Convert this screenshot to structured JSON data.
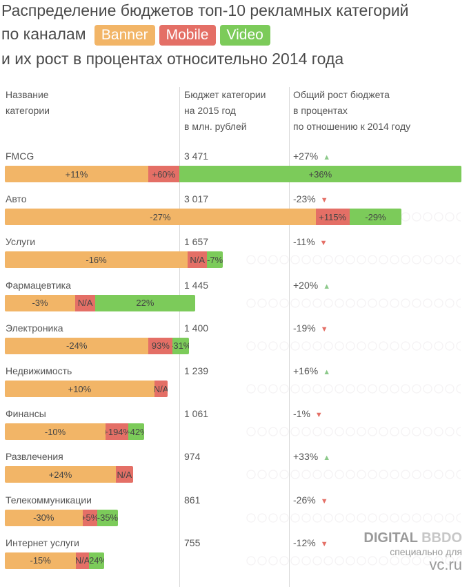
{
  "title": {
    "line1": "Распределение бюджетов топ-10 рекламных категорий",
    "line2": "по каналам",
    "line3": "и их рост в процентах относительно 2014 года"
  },
  "legend": [
    {
      "label": "Banner",
      "color": "#f2b567"
    },
    {
      "label": "Mobile",
      "color": "#e46f66"
    },
    {
      "label": "Video",
      "color": "#7ccb5a"
    }
  ],
  "headers": {
    "name": [
      "Название",
      "категории"
    ],
    "budget": [
      "Бюджет категории",
      "на 2015 год",
      "в млн. рублей"
    ],
    "growth": [
      "Общий рост бюджета",
      "в процентах",
      "по отношению к 2014 году"
    ]
  },
  "colors": {
    "banner": "#f2b567",
    "mobile": "#e46f66",
    "video": "#7ccb5a",
    "up": "#8cc98a",
    "down": "#e46f66"
  },
  "chart_data": {
    "type": "bar",
    "categories": [
      "FMCG",
      "Авто",
      "Услуги",
      "Фармацевтика",
      "Электроника",
      "Недвижимость",
      "Финансы",
      "Развлечения",
      "Телекоммуникации",
      "Интернет услуги"
    ],
    "rows": [
      {
        "name": "FMCG",
        "budget_label": "3 471",
        "budget": 3471,
        "growth_label": "+27%",
        "direction": "up",
        "segments": [
          {
            "channel": "banner",
            "value": 1090,
            "label": "+11%"
          },
          {
            "channel": "mobile",
            "value": 235,
            "label": "+60%"
          },
          {
            "channel": "video",
            "value": 2146,
            "label": "+36%"
          }
        ]
      },
      {
        "name": "Авто",
        "budget_label": "3 017",
        "budget": 3017,
        "growth_label": "-23%",
        "direction": "down",
        "segments": [
          {
            "channel": "banner",
            "value": 2364,
            "label": "-27%"
          },
          {
            "channel": "mobile",
            "value": 255,
            "label": "+115%"
          },
          {
            "channel": "video",
            "value": 398,
            "label": "-29%"
          }
        ]
      },
      {
        "name": "Услуги",
        "budget_label": "1 657",
        "budget": 1657,
        "growth_label": "-11%",
        "direction": "down",
        "segments": [
          {
            "channel": "banner",
            "value": 1390,
            "label": "-16%"
          },
          {
            "channel": "mobile",
            "value": 148,
            "label": "N/A"
          },
          {
            "channel": "video",
            "value": 119,
            "label": "-7%"
          }
        ]
      },
      {
        "name": "Фармацевтика",
        "budget_label": "1 445",
        "budget": 1445,
        "growth_label": "+20%",
        "direction": "up",
        "segments": [
          {
            "channel": "banner",
            "value": 535,
            "label": "-3%"
          },
          {
            "channel": "mobile",
            "value": 153,
            "label": "N/A"
          },
          {
            "channel": "video",
            "value": 757,
            "label": "22%"
          }
        ]
      },
      {
        "name": "Электроника",
        "budget_label": "1 400",
        "budget": 1400,
        "growth_label": "-19%",
        "direction": "down",
        "segments": [
          {
            "channel": "banner",
            "value": 1093,
            "label": "-24%"
          },
          {
            "channel": "mobile",
            "value": 183,
            "label": "93%"
          },
          {
            "channel": "video",
            "value": 124,
            "label": "-31%"
          }
        ]
      },
      {
        "name": "Недвижимость",
        "budget_label": "1 239",
        "budget": 1239,
        "growth_label": "+16%",
        "direction": "up",
        "segments": [
          {
            "channel": "banner",
            "value": 1137,
            "label": "+10%"
          },
          {
            "channel": "mobile",
            "value": 102,
            "label": "N/A"
          }
        ]
      },
      {
        "name": "Финансы",
        "budget_label": "1 061",
        "budget": 1061,
        "growth_label": "-1%",
        "direction": "down",
        "segments": [
          {
            "channel": "banner",
            "value": 766,
            "label": "-10%"
          },
          {
            "channel": "mobile",
            "value": 174,
            "label": "+194%"
          },
          {
            "channel": "video",
            "value": 121,
            "label": "+42%"
          }
        ]
      },
      {
        "name": "Развлечения",
        "budget_label": "974",
        "budget": 974,
        "growth_label": "+33%",
        "direction": "up",
        "segments": [
          {
            "channel": "banner",
            "value": 844,
            "label": "+24%"
          },
          {
            "channel": "mobile",
            "value": 130,
            "label": "N/A"
          }
        ]
      },
      {
        "name": "Телекоммуникации",
        "budget_label": "861",
        "budget": 861,
        "growth_label": "-26%",
        "direction": "down",
        "segments": [
          {
            "channel": "banner",
            "value": 590,
            "label": "-30%"
          },
          {
            "channel": "mobile",
            "value": 111,
            "label": "+5%"
          },
          {
            "channel": "video",
            "value": 160,
            "label": "-35%"
          }
        ]
      },
      {
        "name": "Интернет услуги",
        "budget_label": "755",
        "budget": 755,
        "growth_label": "-12%",
        "direction": "down",
        "segments": [
          {
            "channel": "banner",
            "value": 542,
            "label": "-15%"
          },
          {
            "channel": "mobile",
            "value": 97,
            "label": "N/A"
          },
          {
            "channel": "video",
            "value": 116,
            "label": "-24%"
          }
        ]
      }
    ]
  },
  "branding": {
    "logo_part1": "DIGITAL ",
    "logo_part2": "BBDO",
    "sub": "специально для",
    "site": "vc.ru"
  }
}
